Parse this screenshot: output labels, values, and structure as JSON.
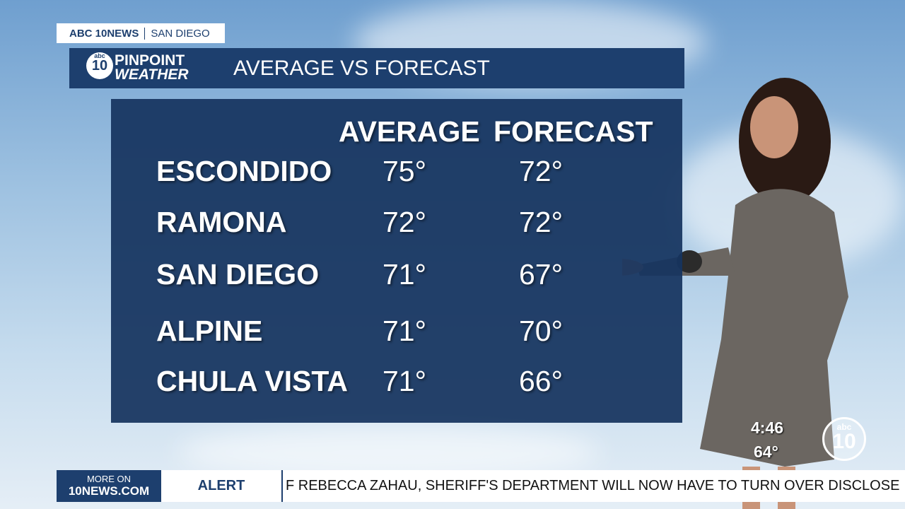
{
  "brand": {
    "station": "ABC 10NEWS",
    "location": "SAN DIEGO"
  },
  "header": {
    "logo_network": "abc",
    "logo_number": "10",
    "logo_top": "PINPOINT",
    "logo_bottom": "WEATHER",
    "title": "AVERAGE VS FORECAST"
  },
  "table": {
    "columns": [
      "AVERAGE",
      "FORECAST"
    ],
    "rows": [
      [
        "ESCONDIDO",
        "75°",
        "72°"
      ],
      [
        "RAMONA",
        "72°",
        "72°"
      ],
      [
        "SAN DIEGO",
        "71°",
        "67°"
      ],
      [
        "ALPINE",
        "71°",
        "70°"
      ],
      [
        "CHULA VISTA",
        "71°",
        "66°"
      ]
    ]
  },
  "status": {
    "time": "4:46",
    "temperature": "64°",
    "logo_network": "abc",
    "logo_number": "10"
  },
  "ticker": {
    "more_top": "MORE ON",
    "more_bottom": "10NEWS.COM",
    "label": "ALERT",
    "text": "F REBECCA ZAHAU, SHERIFF'S DEPARTMENT WILL NOW HAVE TO TURN OVER DISCLOSE"
  }
}
